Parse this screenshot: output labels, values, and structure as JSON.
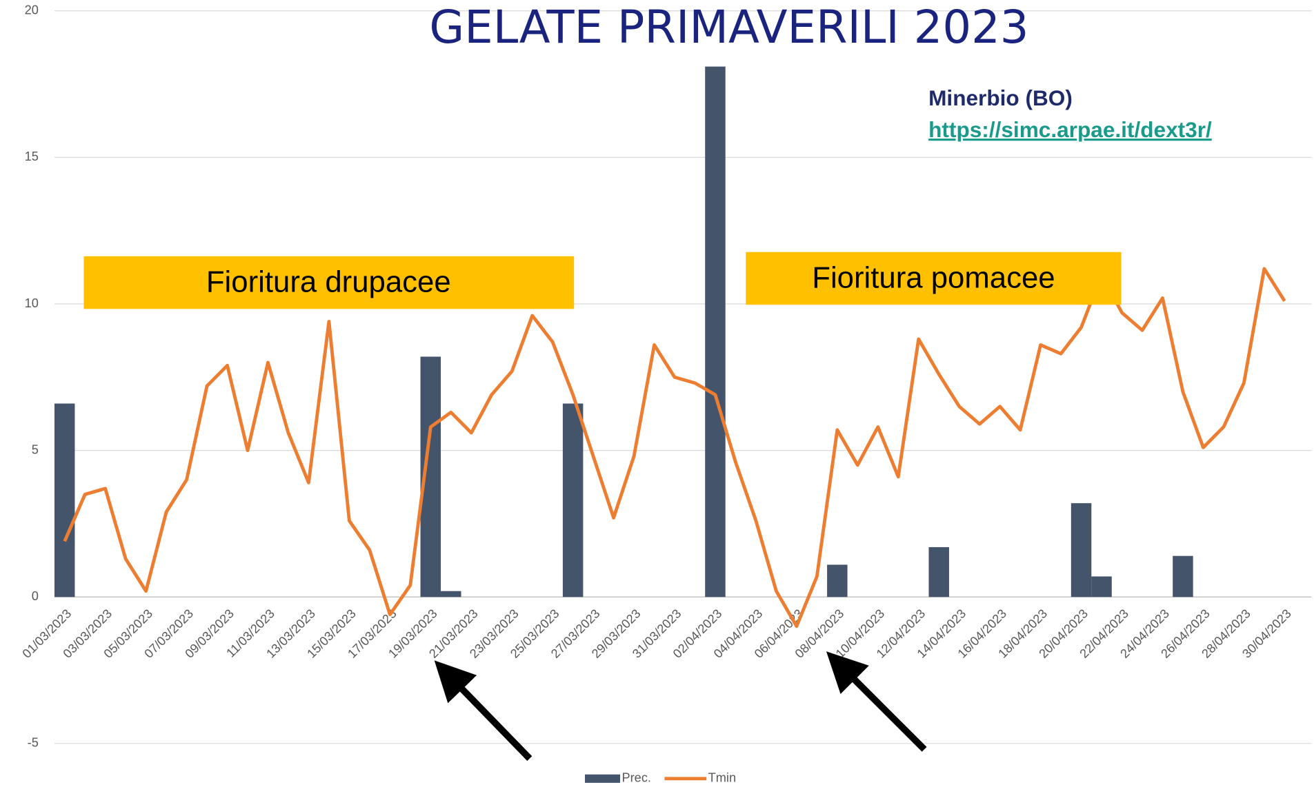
{
  "chart_data": {
    "type": "bar-line",
    "title": "GELATE PRIMAVERILI 2023",
    "annotations": [
      "Minerbio (BO)",
      "https://simc.arpae.it/dext3r/",
      "Fioritura drupacee",
      "Fioritura pomacee"
    ],
    "categories": [
      "01/03/2023",
      null,
      "03/03/2023",
      null,
      "05/03/2023",
      null,
      "07/03/2023",
      null,
      "09/03/2023",
      null,
      "11/03/2023",
      null,
      "13/03/2023",
      null,
      "15/03/2023",
      null,
      "17/03/2023",
      null,
      "19/03/2023",
      null,
      "21/03/2023",
      null,
      "23/03/2023",
      null,
      "25/03/2023",
      null,
      "27/03/2023",
      null,
      "29/03/2023",
      null,
      "31/03/2023",
      null,
      "02/04/2023",
      null,
      "04/04/2023",
      null,
      "06/04/2023",
      null,
      "08/04/2023",
      null,
      "10/04/2023",
      null,
      "12/04/2023",
      null,
      "14/04/2023",
      null,
      "16/04/2023",
      null,
      "18/04/2023",
      null,
      "20/04/2023",
      null,
      "22/04/2023",
      null,
      "24/04/2023",
      null,
      "26/04/2023",
      null,
      "28/04/2023",
      null,
      "30/04/2023"
    ],
    "series": [
      {
        "name": "Prec.",
        "kind": "bar",
        "color": "#44546a",
        "values": [
          6.6,
          0,
          0,
          0,
          0,
          0,
          0,
          0,
          0,
          0,
          0,
          0,
          0,
          0,
          0,
          0,
          0,
          0,
          8.2,
          0.2,
          0,
          0,
          0,
          0,
          0,
          6.6,
          0,
          0,
          0,
          0,
          0,
          0,
          18.1,
          0,
          0,
          0,
          0,
          0,
          1.1,
          0,
          0,
          0,
          0,
          1.7,
          0,
          0,
          0,
          0,
          0,
          0,
          3.2,
          0.7,
          0,
          0,
          0,
          1.4,
          0,
          0,
          0,
          0,
          0
        ]
      },
      {
        "name": "Tmin",
        "kind": "line",
        "color": "#ed7d31",
        "values": [
          1.9,
          3.5,
          3.7,
          1.3,
          0.2,
          2.9,
          4.0,
          7.2,
          7.9,
          5.0,
          8.0,
          5.6,
          3.9,
          9.4,
          2.6,
          1.6,
          -0.6,
          0.4,
          5.8,
          6.3,
          5.6,
          6.9,
          7.7,
          9.6,
          8.7,
          6.9,
          4.8,
          2.7,
          4.8,
          8.6,
          7.5,
          7.3,
          6.9,
          4.6,
          2.6,
          0.2,
          -1.0,
          0.7,
          5.7,
          4.5,
          5.8,
          4.1,
          8.8,
          7.6,
          6.5,
          5.9,
          6.5,
          5.7,
          8.6,
          8.3,
          9.2,
          11.0,
          9.7,
          9.1,
          10.2,
          7.0,
          5.1,
          5.8,
          7.3,
          11.2,
          10.1
        ]
      }
    ],
    "ylim": [
      -5,
      20
    ],
    "yticks": [
      -5,
      0,
      5,
      10,
      15,
      20
    ],
    "grid": true,
    "legend": "bottom"
  }
}
